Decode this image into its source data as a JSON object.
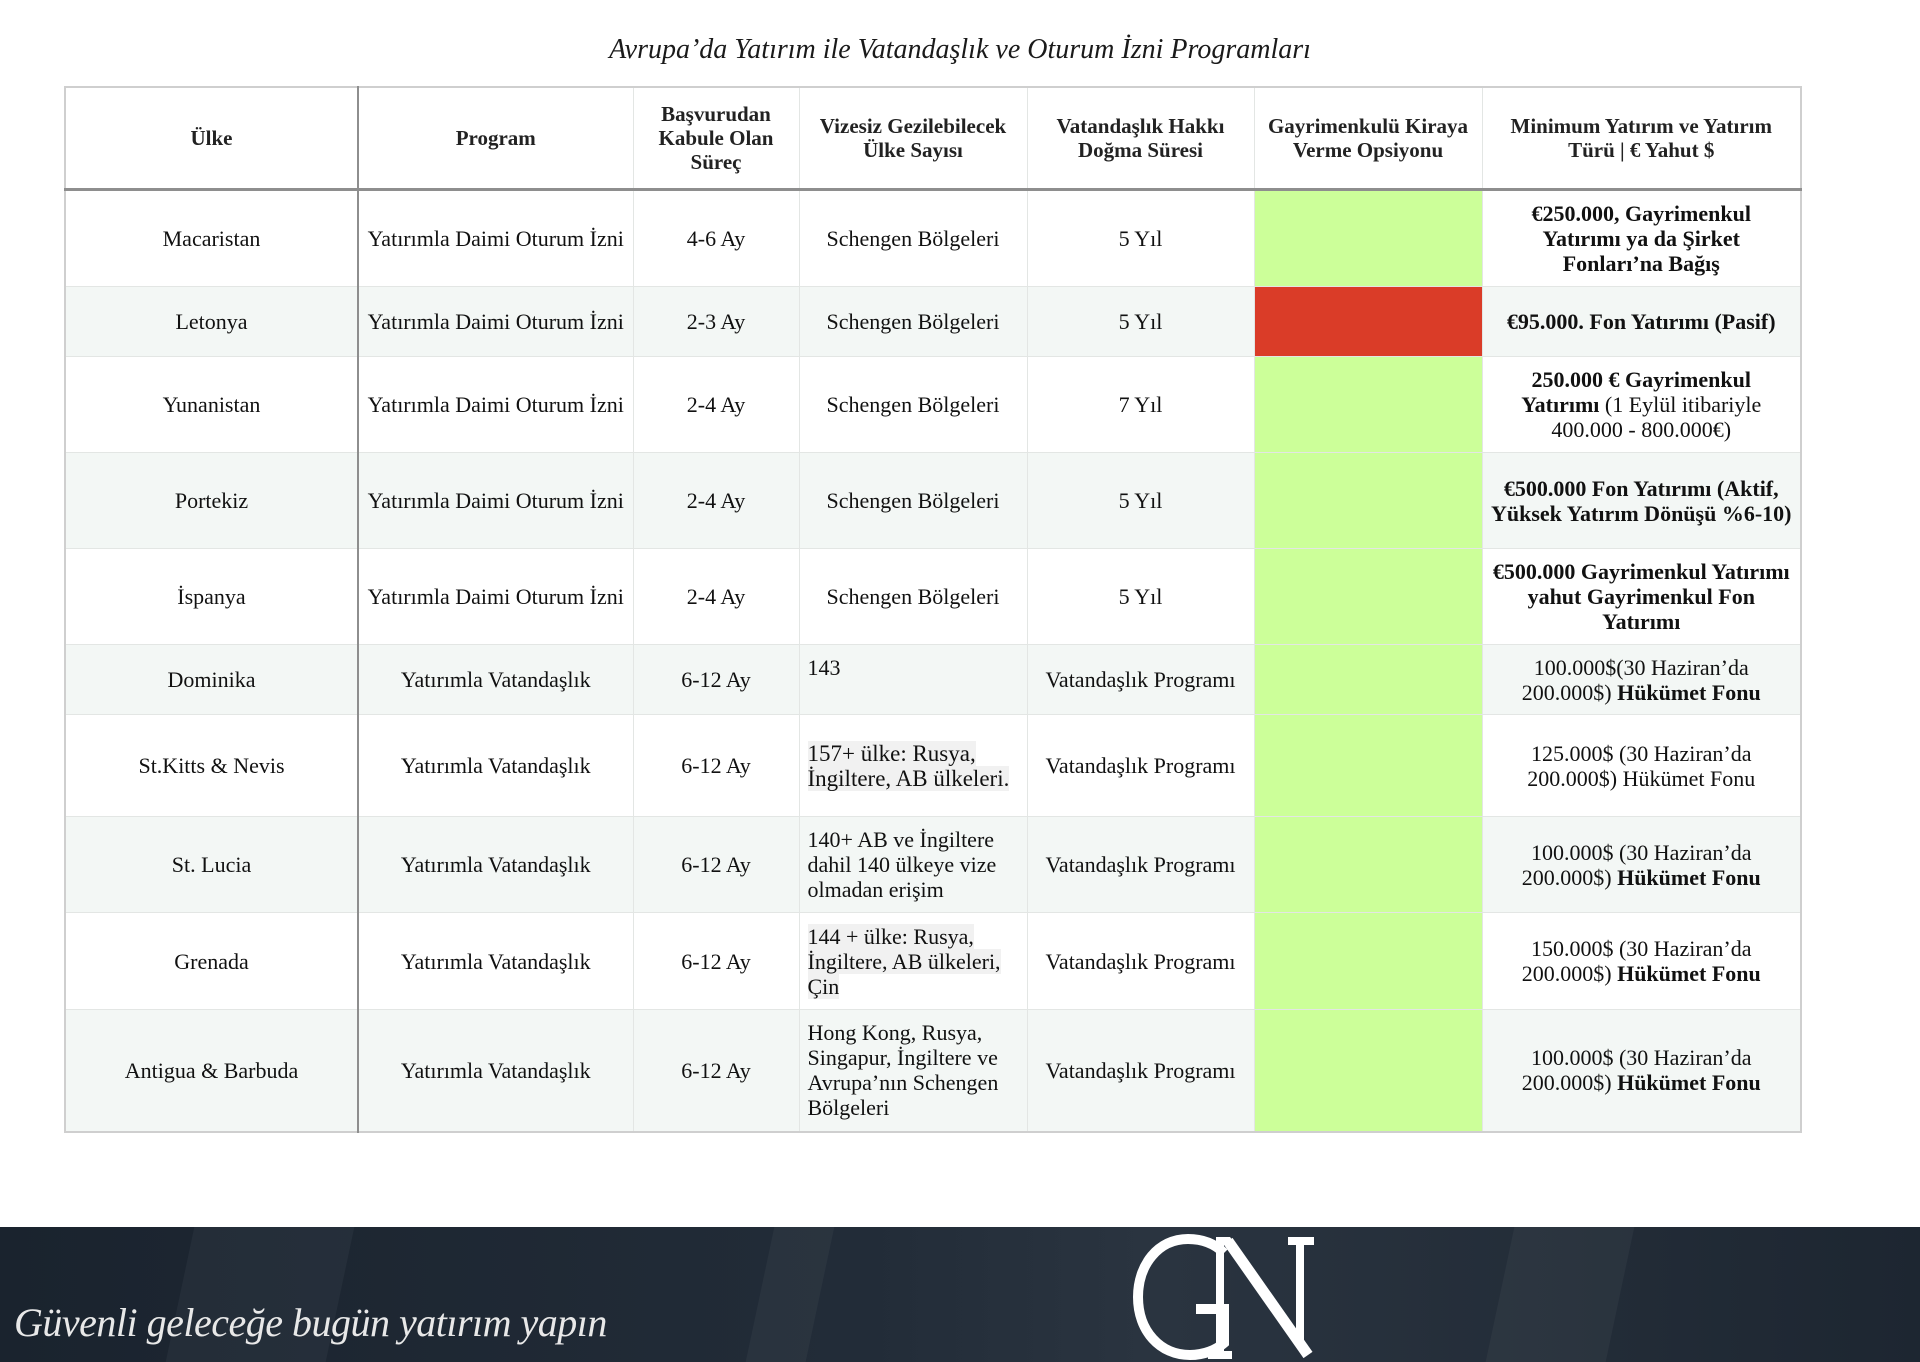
{
  "title": "Avrupa’da Yatırım ile Vatandaşlık ve Oturum İzni Programları",
  "headers": [
    "Ülke",
    "Program",
    "Başvurudan Kabule Olan Süreç",
    "Vizesiz Gezilebilecek Ülke Sayısı",
    "Vatandaşlık Hakkı Doğma Süresi",
    "Gayrimenkulü Kiraya Verme Opsiyonu",
    "Minimum Yatırım ve Yatırım Türü | € Yahut $"
  ],
  "rows": [
    {
      "country": "Macaristan",
      "program": "Yatırımla Daimi Oturum İzni",
      "process": "4-6 Ay",
      "travel": "Schengen Bölgeleri",
      "citizenship": "5 Yıl",
      "rental": "yes",
      "rental_color": "#ccff99",
      "invest_bold": "€250.000, Gayrimenkul Yatırımı ya da Şirket Fonları’na Bağış",
      "invest_normal": ""
    },
    {
      "country": "Letonya",
      "program": "Yatırımla Daimi Oturum İzni",
      "process": "2-3 Ay",
      "travel": "Schengen Bölgeleri",
      "citizenship": "5 Yıl",
      "rental": "no",
      "rental_color": "#da3c28",
      "invest_bold": "€95.000. Fon Yatırımı (Pasif)",
      "invest_normal": ""
    },
    {
      "country": "Yunanistan",
      "program": "Yatırımla Daimi Oturum İzni",
      "process": "2-4 Ay",
      "travel": "Schengen Bölgeleri",
      "citizenship": "7 Yıl",
      "rental": "yes",
      "rental_color": "#ccff99",
      "invest_bold": "250.000 € Gayrimenkul Yatırımı",
      "invest_normal": " (1 Eylül itibariyle 400.000 - 800.000€)"
    },
    {
      "country": "Portekiz",
      "program": "Yatırımla Daimi Oturum İzni",
      "process": "2-4 Ay",
      "travel": "Schengen Bölgeleri",
      "citizenship": "5 Yıl",
      "rental": "yes",
      "rental_color": "#ccff99",
      "invest_bold": "€500.000 Fon Yatırımı (Aktif, Yüksek Yatırım Dönüşü %6-10)",
      "invest_normal": ""
    },
    {
      "country": "İspanya",
      "program": "Yatırımla Daimi Oturum İzni",
      "process": "2-4 Ay",
      "travel": "Schengen Bölgeleri",
      "citizenship": "5 Yıl",
      "rental": "yes",
      "rental_color": "#ccff99",
      "invest_bold": "€500.000 Gayrimenkul Yatırımı yahut Gayrimenkul Fon Yatırımı",
      "invest_normal": ""
    },
    {
      "country": "Dominika",
      "program": "Yatırımla Vatandaşlık",
      "process": "6-12 Ay",
      "travel": "143",
      "citizenship": "Vatandaşlık Programı",
      "rental": "yes",
      "rental_color": "#ccff99",
      "invest_normal": "100.000$(30 Haziran’da 200.000$) ",
      "invest_bold": " Hükümet Fonu"
    },
    {
      "country": "St.Kitts & Nevis",
      "program": "Yatırımla Vatandaşlık",
      "process": "6-12 Ay",
      "travel": "157+ ülke: Rusya, İngiltere, AB ülkeleri.",
      "citizenship": "Vatandaşlık Programı",
      "rental": "yes",
      "rental_color": "#ccff99",
      "invest_normal": "125.000$ (30 Haziran’da 200.000$) Hükümet Fonu",
      "invest_bold": ""
    },
    {
      "country": "St. Lucia",
      "program": "Yatırımla Vatandaşlık",
      "process": "6-12 Ay",
      "travel": "140+ AB ve İngiltere dahil 140 ülkeye vize olmadan erişim",
      "citizenship": "Vatandaşlık Programı",
      "rental": "yes",
      "rental_color": "#ccff99",
      "invest_normal": "100.000$ (30 Haziran’da 200.000$) ",
      "invest_bold": "Hükümet Fonu"
    },
    {
      "country": "Grenada",
      "program": "Yatırımla Vatandaşlık",
      "process": "6-12 Ay",
      "travel": "144 + ülke: Rusya, İngiltere, AB ülkeleri, Çin",
      "citizenship": "Vatandaşlık Programı",
      "rental": "yes",
      "rental_color": "#ccff99",
      "invest_normal": "150.000$ (30 Haziran’da 200.000$) ",
      "invest_bold": "Hükümet Fonu"
    },
    {
      "country": "Antigua & Barbuda",
      "program": "Yatırımla Vatandaşlık",
      "process": "6-12 Ay",
      "travel": "Hong Kong, Rusya, Singapur, İngiltere ve Avrupa’nın Schengen Bölgeleri",
      "citizenship": "Vatandaşlık Programı",
      "rental": "yes",
      "rental_color": "#ccff99",
      "invest_normal": "100.000$ (30 Haziran’da 200.000$) ",
      "invest_bold": "Hükümet Fonu"
    }
  ],
  "footer": {
    "tagline": "Güvenli geleceğe bugün yatırım yapın",
    "logo_text": "GN"
  }
}
